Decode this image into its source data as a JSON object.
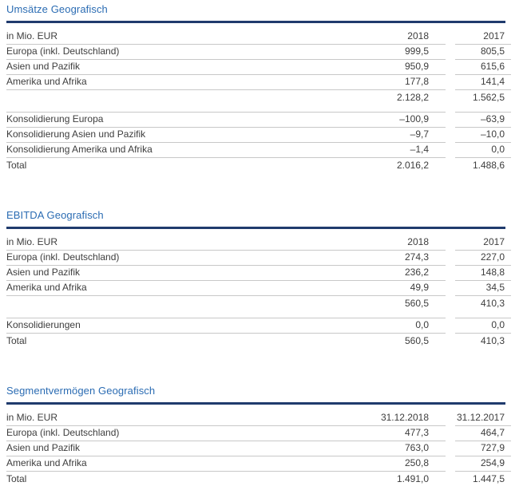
{
  "theme": {
    "background": "#ffffff",
    "title-color": "#2b6cb3",
    "rule-color": "#203b6d",
    "line-color": "#c8c8c8",
    "text-color": "#3d3d3d"
  },
  "tables": [
    {
      "title": "Umsätze Geografisch",
      "unit_label": "in Mio. EUR",
      "col_headers": [
        "2018",
        "2017"
      ],
      "rows": [
        {
          "style": "data",
          "label": "Europa (inkl. Deutschland)",
          "values": [
            "999,5",
            "805,5"
          ]
        },
        {
          "style": "data",
          "label": "Asien und Pazifik",
          "values": [
            "950,9",
            "615,6"
          ]
        },
        {
          "style": "data",
          "label": "Amerika und Afrika",
          "values": [
            "177,8",
            "141,4"
          ]
        },
        {
          "style": "subtotal",
          "label": "",
          "values": [
            "2.128,2",
            "1.562,5"
          ]
        },
        {
          "style": "spacer",
          "label": "",
          "values": [
            "",
            ""
          ]
        },
        {
          "style": "data",
          "label": "Konsolidierung Europa",
          "values": [
            "–100,9",
            "–63,9"
          ]
        },
        {
          "style": "data",
          "label": "Konsolidierung Asien und Pazifik",
          "values": [
            "–9,7",
            "–10,0"
          ]
        },
        {
          "style": "data",
          "label": "Konsolidierung Amerika und Afrika",
          "values": [
            "–1,4",
            "0,0"
          ]
        },
        {
          "style": "total",
          "label": "Total",
          "values": [
            "2.016,2",
            "1.488,6"
          ]
        }
      ]
    },
    {
      "title": "EBITDA Geografisch",
      "unit_label": "in Mio. EUR",
      "col_headers": [
        "2018",
        "2017"
      ],
      "rows": [
        {
          "style": "data",
          "label": "Europa (inkl. Deutschland)",
          "values": [
            "274,3",
            "227,0"
          ]
        },
        {
          "style": "data",
          "label": "Asien und Pazifik",
          "values": [
            "236,2",
            "148,8"
          ]
        },
        {
          "style": "data",
          "label": "Amerika und Afrika",
          "values": [
            "49,9",
            "34,5"
          ]
        },
        {
          "style": "subtotal",
          "label": "",
          "values": [
            "560,5",
            "410,3"
          ]
        },
        {
          "style": "spacer",
          "label": "",
          "values": [
            "",
            ""
          ]
        },
        {
          "style": "data",
          "label": "Konsolidierungen",
          "values": [
            "0,0",
            "0,0"
          ]
        },
        {
          "style": "total",
          "label": "Total",
          "values": [
            "560,5",
            "410,3"
          ]
        }
      ]
    },
    {
      "title": "Segmentvermögen Geografisch",
      "unit_label": "in Mio. EUR",
      "col_headers": [
        "31.12.2018",
        "31.12.2017"
      ],
      "rows": [
        {
          "style": "data",
          "label": "Europa (inkl. Deutschland)",
          "values": [
            "477,3",
            "464,7"
          ]
        },
        {
          "style": "data",
          "label": "Asien und Pazifik",
          "values": [
            "763,0",
            "727,9"
          ]
        },
        {
          "style": "data",
          "label": "Amerika und Afrika",
          "values": [
            "250,8",
            "254,9"
          ]
        },
        {
          "style": "total",
          "label": "Total",
          "values": [
            "1.491,0",
            "1.447,5"
          ]
        }
      ]
    }
  ]
}
